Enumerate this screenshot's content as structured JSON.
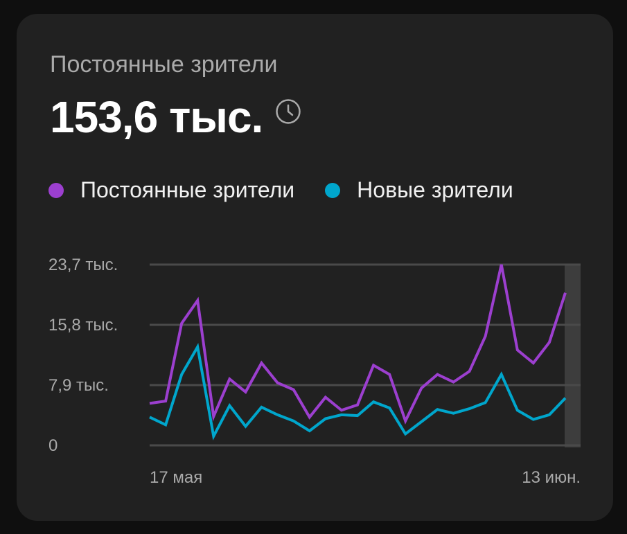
{
  "card": {
    "title": "Постоянные зрители",
    "value": "153,6 тыс.",
    "icon": "clock-icon"
  },
  "legend": [
    {
      "label": "Постоянные зрители",
      "color": "#9c3fcf"
    },
    {
      "label": "Новые зрители",
      "color": "#00a6cc"
    }
  ],
  "chart_data": {
    "type": "line",
    "x_start_label": "17 мая",
    "x_end_label": "13 июн.",
    "y_ticks": [
      {
        "value": 0,
        "label": "0"
      },
      {
        "value": 7900,
        "label": "7,9 тыс."
      },
      {
        "value": 15800,
        "label": "15,8 тыс."
      },
      {
        "value": 23700,
        "label": "23,7 тыс."
      }
    ],
    "ylim": [
      0,
      23700
    ],
    "grid": true,
    "highlight_last_point": true,
    "series": [
      {
        "name": "Постоянные зрители",
        "color": "#9c3fcf",
        "values": [
          5500,
          5800,
          16000,
          19000,
          3800,
          8700,
          7000,
          10800,
          8200,
          7300,
          3700,
          6300,
          4600,
          5300,
          10500,
          9300,
          3200,
          7500,
          9300,
          8300,
          9700,
          14300,
          23700,
          12500,
          10800,
          13500,
          20000
        ]
      },
      {
        "name": "Новые зрители",
        "color": "#00a6cc",
        "values": [
          3700,
          2700,
          9300,
          12900,
          1200,
          5200,
          2500,
          5000,
          4000,
          3200,
          1900,
          3500,
          4000,
          3900,
          5700,
          4900,
          1500,
          3100,
          4700,
          4200,
          4800,
          5600,
          9300,
          4600,
          3400,
          4000,
          6200
        ]
      }
    ]
  }
}
